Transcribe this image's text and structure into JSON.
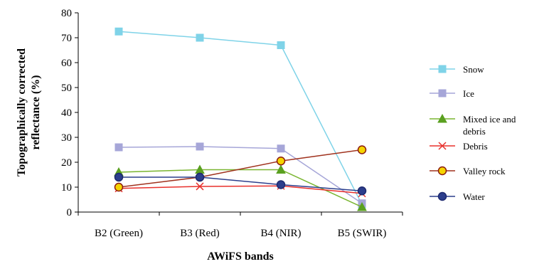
{
  "chart_data": {
    "type": "line",
    "title": "",
    "xlabel": "AWiFS bands",
    "ylabel": "Topographically corrected reflectance (%)",
    "ylabel_lines": [
      "Topographically corrected",
      "reflectance (%)"
    ],
    "categories": [
      "B2 (Green)",
      "B3 (Red)",
      "B4 (NIR)",
      "B5 (SWIR)"
    ],
    "ylim": [
      0,
      80
    ],
    "yticks": [
      0,
      10,
      20,
      30,
      40,
      50,
      60,
      70,
      80
    ],
    "grid": false,
    "legend_position": "right",
    "series": [
      {
        "name": "Snow",
        "values": [
          72.5,
          70,
          67,
          3
        ],
        "color": "#7fd3e8",
        "marker": "square",
        "marker_fill": "#7fd3e8",
        "marker_stroke": "#7fd3e8"
      },
      {
        "name": "Ice",
        "values": [
          26,
          26.3,
          25.5,
          3.5
        ],
        "color": "#a6a6d8",
        "marker": "square",
        "marker_fill": "#a6a6d8",
        "marker_stroke": "#a6a6d8"
      },
      {
        "name": "Mixed ice and debris",
        "name_lines": [
          "Mixed ice and",
          "debris"
        ],
        "values": [
          16,
          17,
          17,
          2
        ],
        "color": "#7ab530",
        "marker": "triangle",
        "marker_fill": "#5aa020",
        "marker_stroke": "#5aa020"
      },
      {
        "name": "Debris",
        "values": [
          9.5,
          10.3,
          10.5,
          7.5
        ],
        "color": "#e8302c",
        "marker": "x",
        "marker_fill": "none",
        "marker_stroke": "#e8302c"
      },
      {
        "name": "Valley rock",
        "values": [
          10,
          14,
          20.5,
          25
        ],
        "color": "#a0321e",
        "marker": "circle",
        "marker_fill": "#f5d400",
        "marker_stroke": "#8b1a10"
      },
      {
        "name": "Water",
        "values": [
          14,
          14,
          11,
          8.5
        ],
        "color": "#2c3e8c",
        "marker": "circle",
        "marker_fill": "#2c3e8c",
        "marker_stroke": "#1e2a70"
      }
    ]
  }
}
